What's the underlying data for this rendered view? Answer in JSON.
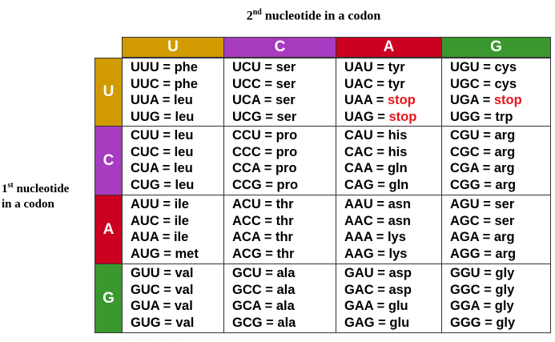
{
  "title": {
    "ordinal": "2",
    "sup": "nd",
    "text": " nucleotide in a codon"
  },
  "side_label": {
    "ordinal": "1",
    "sup": "st",
    "line1": " nucleotide",
    "line2": "in a codon"
  },
  "colors": {
    "U": "#d09a00",
    "C": "#a83cc0",
    "A": "#cc0020",
    "G": "#3a982e",
    "stop": "#e8141c"
  },
  "columns": [
    "U",
    "C",
    "A",
    "G"
  ],
  "rows": [
    {
      "base": "U",
      "cells": [
        [
          {
            "codon": "UUU",
            "aa": "phe"
          },
          {
            "codon": "UUC",
            "aa": "phe"
          },
          {
            "codon": "UUA",
            "aa": "leu"
          },
          {
            "codon": "UUG",
            "aa": "leu"
          }
        ],
        [
          {
            "codon": "UCU",
            "aa": "ser"
          },
          {
            "codon": "UCC",
            "aa": "ser"
          },
          {
            "codon": "UCA",
            "aa": "ser"
          },
          {
            "codon": "UCG",
            "aa": "ser"
          }
        ],
        [
          {
            "codon": "UAU",
            "aa": "tyr"
          },
          {
            "codon": "UAC",
            "aa": "tyr"
          },
          {
            "codon": "UAA",
            "aa": "stop"
          },
          {
            "codon": "UAG",
            "aa": "stop"
          }
        ],
        [
          {
            "codon": "UGU",
            "aa": "cys"
          },
          {
            "codon": "UGC",
            "aa": "cys"
          },
          {
            "codon": "UGA",
            "aa": "stop"
          },
          {
            "codon": "UGG",
            "aa": "trp"
          }
        ]
      ]
    },
    {
      "base": "C",
      "cells": [
        [
          {
            "codon": "CUU",
            "aa": "leu"
          },
          {
            "codon": "CUC",
            "aa": "leu"
          },
          {
            "codon": "CUA",
            "aa": "leu"
          },
          {
            "codon": "CUG",
            "aa": "leu"
          }
        ],
        [
          {
            "codon": "CCU",
            "aa": "pro"
          },
          {
            "codon": "CCC",
            "aa": "pro"
          },
          {
            "codon": "CCA",
            "aa": "pro"
          },
          {
            "codon": "CCG",
            "aa": "pro"
          }
        ],
        [
          {
            "codon": "CAU",
            "aa": "his"
          },
          {
            "codon": "CAC",
            "aa": "his"
          },
          {
            "codon": "CAA",
            "aa": "gln"
          },
          {
            "codon": "CAG",
            "aa": "gln"
          }
        ],
        [
          {
            "codon": "CGU",
            "aa": "arg"
          },
          {
            "codon": "CGC",
            "aa": "arg"
          },
          {
            "codon": "CGA",
            "aa": "arg"
          },
          {
            "codon": "CGG",
            "aa": "arg"
          }
        ]
      ]
    },
    {
      "base": "A",
      "cells": [
        [
          {
            "codon": "AUU",
            "aa": "ile"
          },
          {
            "codon": "AUC",
            "aa": "ile"
          },
          {
            "codon": "AUA",
            "aa": "ile"
          },
          {
            "codon": "AUG",
            "aa": "met"
          }
        ],
        [
          {
            "codon": "ACU",
            "aa": "thr"
          },
          {
            "codon": "ACC",
            "aa": "thr"
          },
          {
            "codon": "ACA",
            "aa": "thr"
          },
          {
            "codon": "ACG",
            "aa": "thr"
          }
        ],
        [
          {
            "codon": "AAU",
            "aa": "asn"
          },
          {
            "codon": "AAC",
            "aa": "asn"
          },
          {
            "codon": "AAA",
            "aa": "lys"
          },
          {
            "codon": "AAG",
            "aa": "lys"
          }
        ],
        [
          {
            "codon": "AGU",
            "aa": "ser"
          },
          {
            "codon": "AGC",
            "aa": "ser"
          },
          {
            "codon": "AGA",
            "aa": "arg"
          },
          {
            "codon": "AGG",
            "aa": "arg"
          }
        ]
      ]
    },
    {
      "base": "G",
      "cells": [
        [
          {
            "codon": "GUU",
            "aa": "val"
          },
          {
            "codon": "GUC",
            "aa": "val"
          },
          {
            "codon": "GUA",
            "aa": "val"
          },
          {
            "codon": "GUG",
            "aa": "val"
          }
        ],
        [
          {
            "codon": "GCU",
            "aa": "ala"
          },
          {
            "codon": "GCC",
            "aa": "ala"
          },
          {
            "codon": "GCA",
            "aa": "ala"
          },
          {
            "codon": "GCG",
            "aa": "ala"
          }
        ],
        [
          {
            "codon": "GAU",
            "aa": "asp"
          },
          {
            "codon": "GAC",
            "aa": "asp"
          },
          {
            "codon": "GAA",
            "aa": "glu"
          },
          {
            "codon": "GAG",
            "aa": "glu"
          }
        ],
        [
          {
            "codon": "GGU",
            "aa": "gly"
          },
          {
            "codon": "GGC",
            "aa": "gly"
          },
          {
            "codon": "GGA",
            "aa": "gly"
          },
          {
            "codon": "GGG",
            "aa": "gly"
          }
        ]
      ]
    }
  ]
}
